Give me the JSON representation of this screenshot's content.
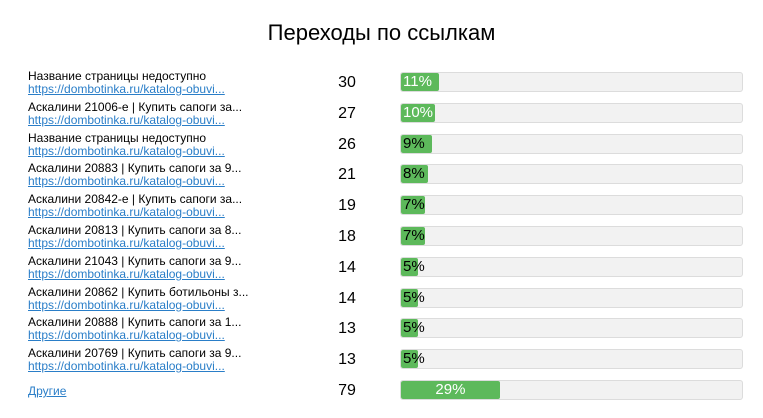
{
  "title": "Переходы по ссылкам",
  "rows": [
    {
      "name": "Название страницы недоступно",
      "link": "https://dombotinka.ru/katalog-obuvi...",
      "count": "30",
      "percent": 11,
      "percent_label": "11%"
    },
    {
      "name": "Аскалини 21006-е | Купить сапоги за...",
      "link": "https://dombotinka.ru/katalog-obuvi...",
      "count": "27",
      "percent": 10,
      "percent_label": "10%"
    },
    {
      "name": "Название страницы недоступно",
      "link": "https://dombotinka.ru/katalog-obuvi...",
      "count": "26",
      "percent": 9,
      "percent_label": "9%"
    },
    {
      "name": "Аскалини 20883 | Купить сапоги за 9...",
      "link": "https://dombotinka.ru/katalog-obuvi...",
      "count": "21",
      "percent": 8,
      "percent_label": "8%"
    },
    {
      "name": "Аскалини 20842-е | Купить сапоги за...",
      "link": "https://dombotinka.ru/katalog-obuvi...",
      "count": "19",
      "percent": 7,
      "percent_label": "7%"
    },
    {
      "name": "Аскалини 20813 | Купить сапоги за 8...",
      "link": "https://dombotinka.ru/katalog-obuvi...",
      "count": "18",
      "percent": 7,
      "percent_label": "7%"
    },
    {
      "name": "Аскалини 21043 | Купить сапоги за 9...",
      "link": "https://dombotinka.ru/katalog-obuvi...",
      "count": "14",
      "percent": 5,
      "percent_label": "5%"
    },
    {
      "name": "Аскалини 20862 | Купить ботильоны з...",
      "link": "https://dombotinka.ru/katalog-obuvi...",
      "count": "14",
      "percent": 5,
      "percent_label": "5%"
    },
    {
      "name": "Аскалини 20888 | Купить сапоги за 1...",
      "link": "https://dombotinka.ru/katalog-obuvi...",
      "count": "13",
      "percent": 5,
      "percent_label": "5%"
    },
    {
      "name": "Аскалини 20769 | Купить сапоги за 9...",
      "link": "https://dombotinka.ru/katalog-obuvi...",
      "count": "13",
      "percent": 5,
      "percent_label": "5%"
    }
  ],
  "other": {
    "link": "Другие",
    "count": "79",
    "percent": 29,
    "percent_label": "29%"
  },
  "colors": {
    "bar_fill": "#5db95b",
    "bar_track": "#f2f2f2",
    "link": "#2a7ec8"
  }
}
